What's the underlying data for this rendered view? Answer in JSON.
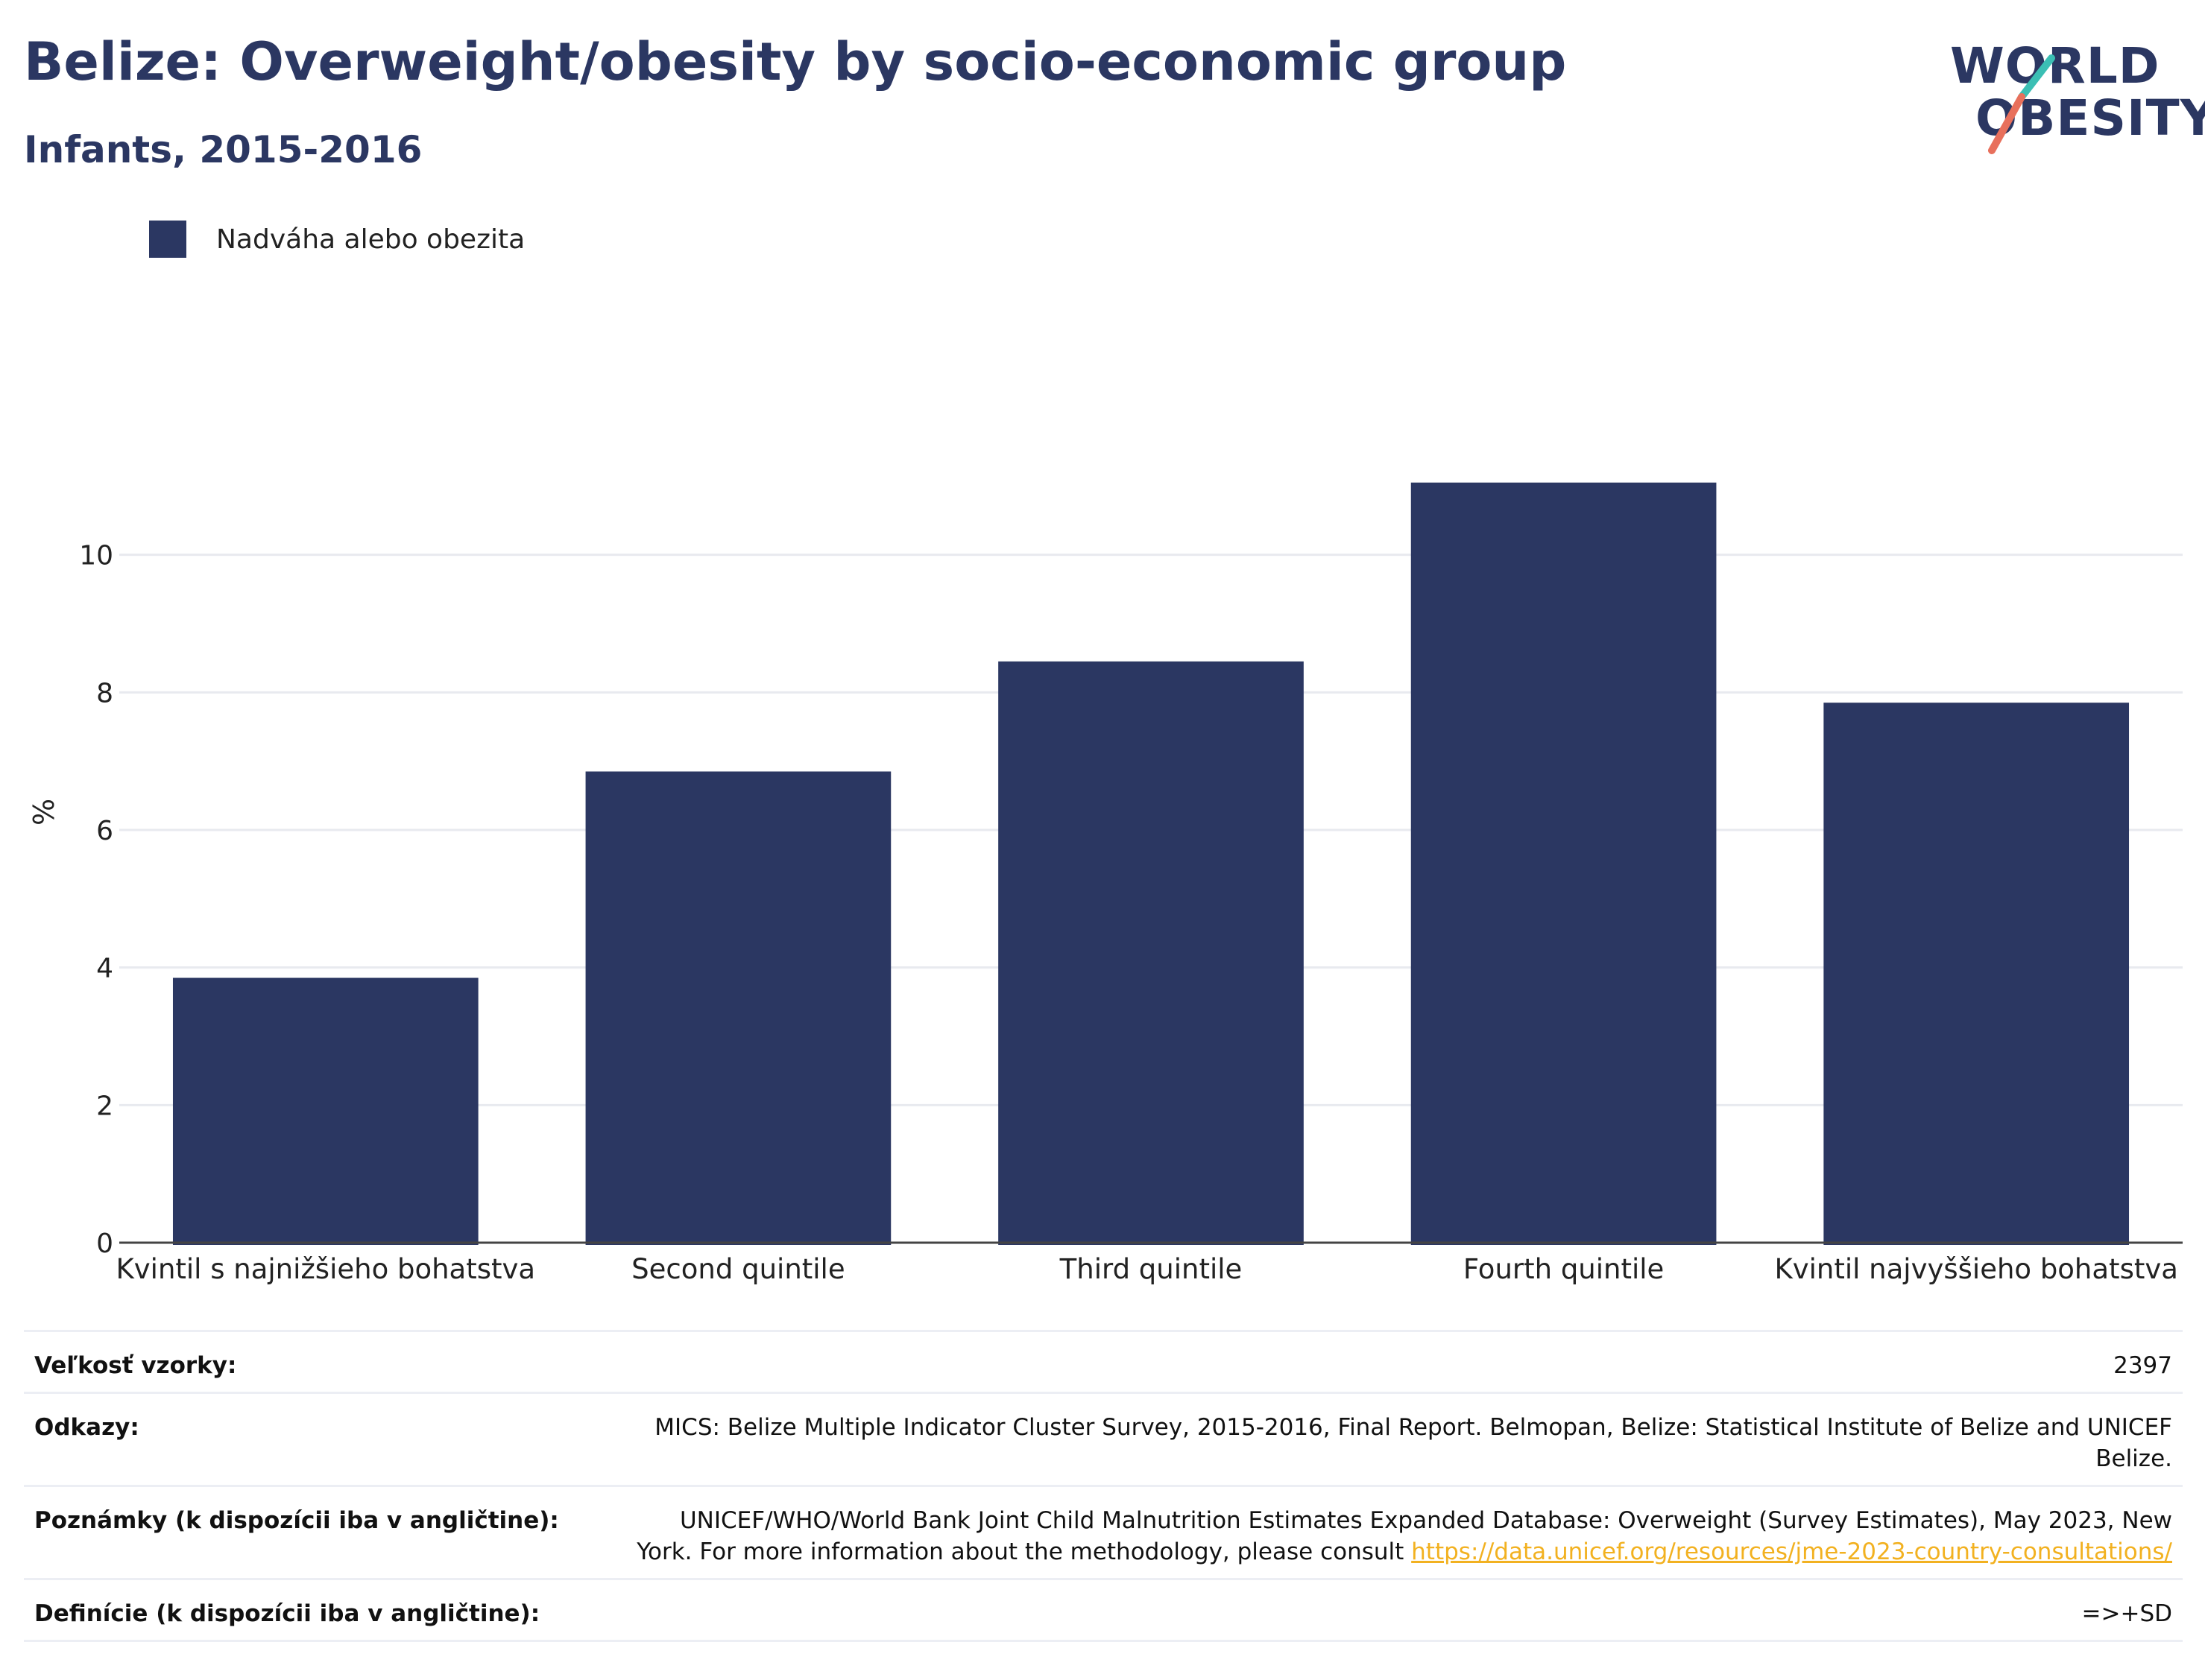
{
  "header": {
    "title": "Belize: Overweight/obesity by socio-economic group",
    "subtitle": "Infants, 2015-2016"
  },
  "logo": {
    "line1": "WORLD",
    "line2": "OBESITY",
    "text_color": "#2b3762",
    "slash_colors": [
      "#3bbfb4",
      "#e8705c"
    ]
  },
  "legend": {
    "label": "Nadváha alebo obezita",
    "color": "#2b3762"
  },
  "chart_data": {
    "type": "bar",
    "categories": [
      "Kvintil s najnižšieho bohatstva",
      "Second quintile",
      "Third quintile",
      "Fourth quintile",
      "Kvintil najvyššieho bohatstva"
    ],
    "series": [
      {
        "name": "Nadváha alebo obezita",
        "values": [
          3.85,
          6.85,
          8.45,
          11.05,
          7.85
        ],
        "color": "#2b3762"
      }
    ],
    "ylabel": "%",
    "ylim": [
      0,
      12
    ],
    "yticks": [
      0,
      2,
      4,
      6,
      8,
      10
    ],
    "grid": true,
    "legend_position": "top-left"
  },
  "info": {
    "sample_size": {
      "label": "Veľkosť vzorky:",
      "value": "2397"
    },
    "references": {
      "label": "Odkazy:",
      "value": "MICS: Belize Multiple Indicator Cluster Survey, 2015-2016, Final Report. Belmopan, Belize: Statistical Institute of Belize and UNICEF Belize."
    },
    "notes": {
      "label": "Poznámky (k dispozícii iba v angličtine):",
      "text": "UNICEF/WHO/World Bank Joint Child Malnutrition Estimates Expanded Database: Overweight (Survey Estimates), May 2023, New York. For more information about the methodology, please consult ",
      "link": "https://data.unicef.org/resources/jme-2023-country-consultations/"
    },
    "definitions": {
      "label": "Definície (k dispozícii iba v angličtine):",
      "value": "=>+SD"
    }
  }
}
